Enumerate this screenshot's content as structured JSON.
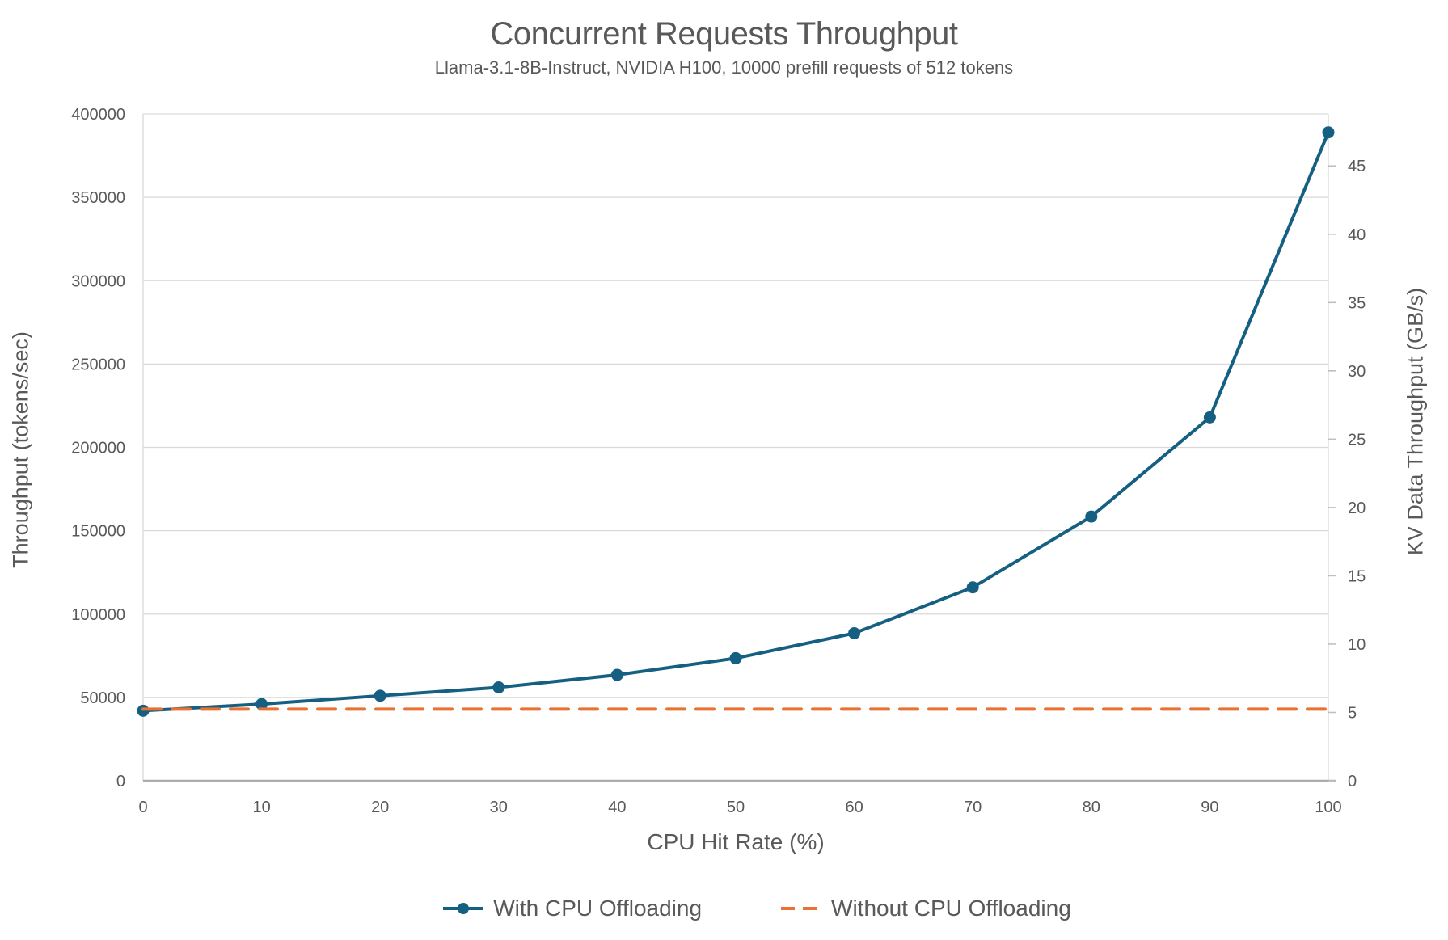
{
  "header": {
    "title": "Concurrent Requests Throughput",
    "subtitle": "Llama-3.1-8B-Instruct, NVIDIA H100, 10000 prefill requests of 512 tokens"
  },
  "chart_data": {
    "type": "line",
    "title": "Concurrent Requests Throughput",
    "subtitle": "Llama-3.1-8B-Instruct, NVIDIA H100, 10000 prefill requests of 512 tokens",
    "xlabel": "CPU Hit Rate (%)",
    "ylabel_left": "Throughput (tokens/sec)",
    "ylabel_right": "KV Data Throughput (GB/s)",
    "x": [
      0,
      10,
      20,
      30,
      40,
      50,
      60,
      70,
      80,
      90,
      100
    ],
    "series": [
      {
        "name": "With CPU Offloading",
        "id": "with-cpu-offloading",
        "axis": "left",
        "color": "#156082",
        "line_style": "solid",
        "markers": true,
        "values": [
          42000,
          46000,
          51000,
          56000,
          63500,
          73500,
          88500,
          116000,
          158500,
          218000,
          389000
        ]
      },
      {
        "name": "Without CPU Offloading",
        "id": "without-cpu-offloading",
        "axis": "left",
        "color": "#E97132",
        "line_style": "dashed",
        "markers": false,
        "values": [
          43000,
          43000,
          43000,
          43000,
          43000,
          43000,
          43000,
          43000,
          43000,
          43000,
          43000
        ]
      }
    ],
    "xlim": [
      0,
      100
    ],
    "ylim_left": [
      0,
      400000
    ],
    "ylim_right": [
      0,
      48.8
    ],
    "xticks": [
      0,
      10,
      20,
      30,
      40,
      50,
      60,
      70,
      80,
      90,
      100
    ],
    "yticks_left": [
      0,
      50000,
      100000,
      150000,
      200000,
      250000,
      300000,
      350000,
      400000
    ],
    "yticks_right": [
      0,
      5,
      10,
      15,
      20,
      25,
      30,
      35,
      40,
      45
    ],
    "grid": "horizontal",
    "legend_position": "bottom",
    "colors": {
      "grid": "#D9D9D9",
      "axis_side": "#D9D9D9",
      "axis_bottom": "#ACACAC",
      "tick": "#BFBFBF",
      "text": "#595959"
    }
  }
}
